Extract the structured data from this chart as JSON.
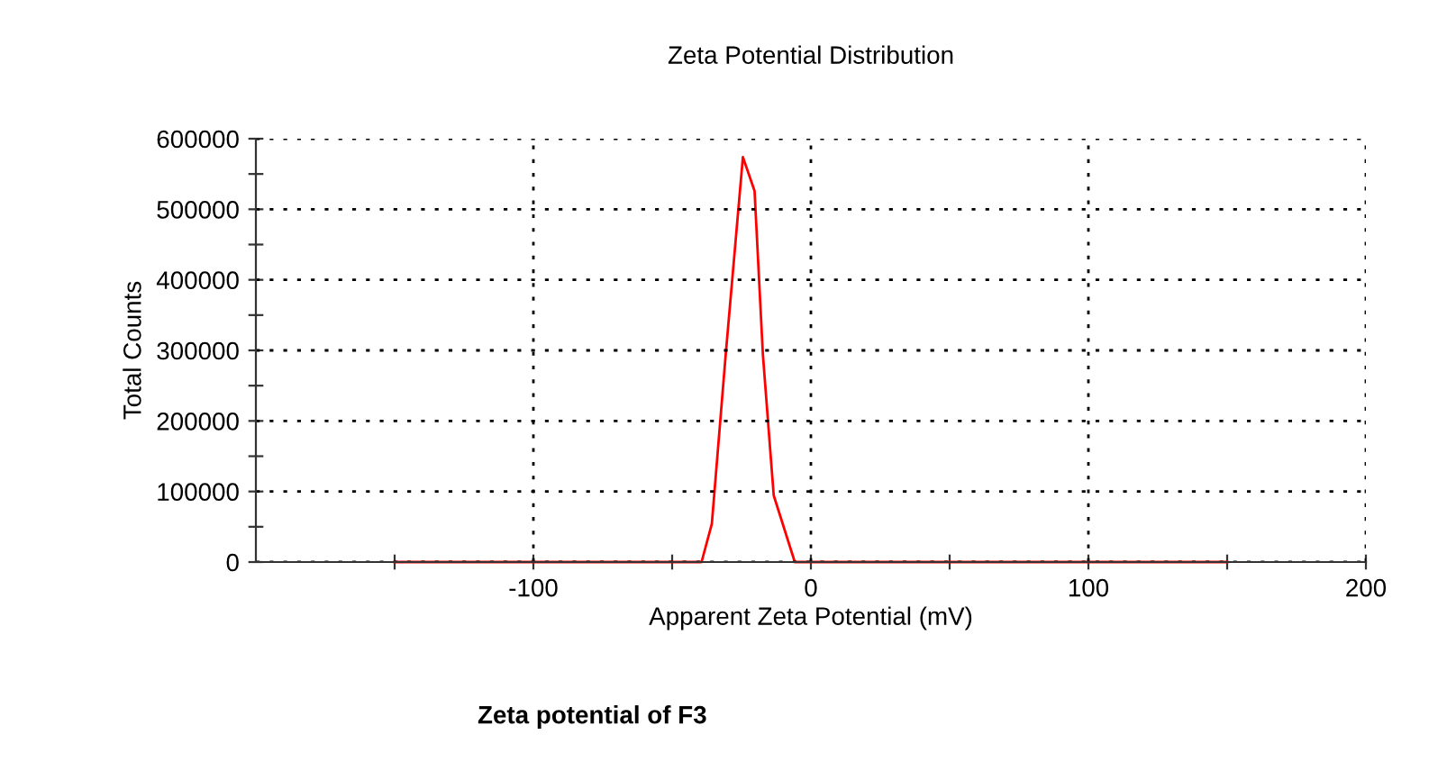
{
  "chart_data": {
    "type": "line",
    "title": "Zeta Potential Distribution",
    "xlabel": "Apparent Zeta Potential (mV)",
    "ylabel": "Total Counts",
    "annotations": [
      "Zeta potential of F3"
    ],
    "series": [
      {
        "color": "#ff0000",
        "x": [
          -150,
          -39.4,
          -35.7,
          -30.7,
          -24.5,
          -20.3,
          -17.3,
          -13.4,
          -5.8,
          150
        ],
        "values": [
          0,
          0,
          54000,
          294000,
          574000,
          526000,
          294000,
          94500,
          0,
          0
        ]
      }
    ],
    "xlim": [
      -200,
      200
    ],
    "ylim": [
      0,
      600000
    ],
    "xticks": [
      {
        "value": -150,
        "label": null
      },
      -100,
      {
        "value": -50,
        "label": null
      },
      0,
      {
        "value": 50,
        "label": null
      },
      100,
      {
        "value": 150,
        "label": null
      },
      200
    ],
    "yticks": [
      0,
      {
        "value": 50000,
        "label": null
      },
      100000,
      {
        "value": 150000,
        "label": null
      },
      200000,
      {
        "value": 250000,
        "label": null
      },
      300000,
      {
        "value": 350000,
        "label": null
      },
      400000,
      {
        "value": 450000,
        "label": null
      },
      500000,
      {
        "value": 550000,
        "label": null
      },
      600000
    ],
    "grid": true,
    "legend": false,
    "marker": "none",
    "line_style": "solid"
  }
}
